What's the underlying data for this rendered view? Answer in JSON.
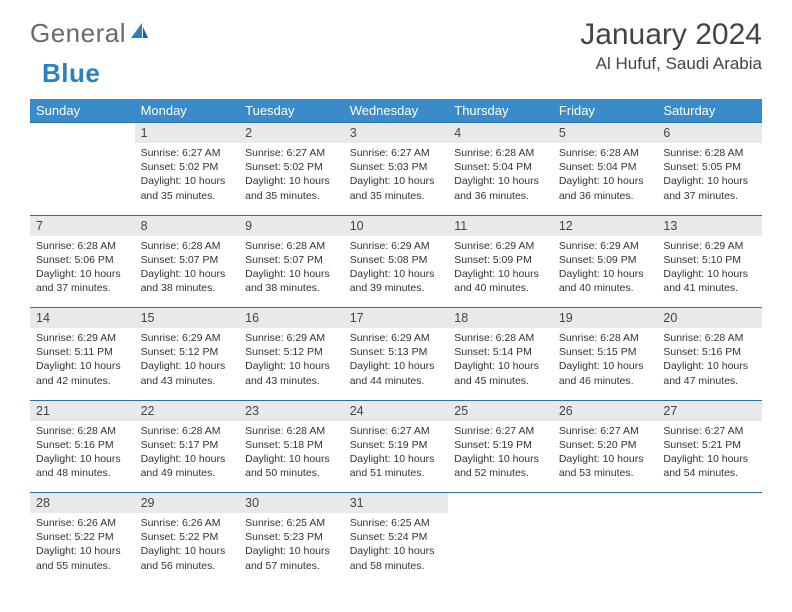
{
  "logo": {
    "part1": "General",
    "part2": "Blue"
  },
  "header": {
    "title": "January 2024",
    "location": "Al Hufuf, Saudi Arabia"
  },
  "colors": {
    "header_bg": "#3a8bc9",
    "daynum_bg": "#e9e9e9",
    "rule": "#2f6fa8",
    "logo_gray": "#6a6a6a",
    "logo_blue": "#2b7fc3"
  },
  "day_headers": [
    "Sunday",
    "Monday",
    "Tuesday",
    "Wednesday",
    "Thursday",
    "Friday",
    "Saturday"
  ],
  "weeks": [
    {
      "nums": [
        "",
        "1",
        "2",
        "3",
        "4",
        "5",
        "6"
      ],
      "cells": [
        null,
        {
          "sunrise": "6:27 AM",
          "sunset": "5:02 PM",
          "daylight": "10 hours and 35 minutes."
        },
        {
          "sunrise": "6:27 AM",
          "sunset": "5:02 PM",
          "daylight": "10 hours and 35 minutes."
        },
        {
          "sunrise": "6:27 AM",
          "sunset": "5:03 PM",
          "daylight": "10 hours and 35 minutes."
        },
        {
          "sunrise": "6:28 AM",
          "sunset": "5:04 PM",
          "daylight": "10 hours and 36 minutes."
        },
        {
          "sunrise": "6:28 AM",
          "sunset": "5:04 PM",
          "daylight": "10 hours and 36 minutes."
        },
        {
          "sunrise": "6:28 AM",
          "sunset": "5:05 PM",
          "daylight": "10 hours and 37 minutes."
        }
      ]
    },
    {
      "nums": [
        "7",
        "8",
        "9",
        "10",
        "11",
        "12",
        "13"
      ],
      "cells": [
        {
          "sunrise": "6:28 AM",
          "sunset": "5:06 PM",
          "daylight": "10 hours and 37 minutes."
        },
        {
          "sunrise": "6:28 AM",
          "sunset": "5:07 PM",
          "daylight": "10 hours and 38 minutes."
        },
        {
          "sunrise": "6:28 AM",
          "sunset": "5:07 PM",
          "daylight": "10 hours and 38 minutes."
        },
        {
          "sunrise": "6:29 AM",
          "sunset": "5:08 PM",
          "daylight": "10 hours and 39 minutes."
        },
        {
          "sunrise": "6:29 AM",
          "sunset": "5:09 PM",
          "daylight": "10 hours and 40 minutes."
        },
        {
          "sunrise": "6:29 AM",
          "sunset": "5:09 PM",
          "daylight": "10 hours and 40 minutes."
        },
        {
          "sunrise": "6:29 AM",
          "sunset": "5:10 PM",
          "daylight": "10 hours and 41 minutes."
        }
      ]
    },
    {
      "nums": [
        "14",
        "15",
        "16",
        "17",
        "18",
        "19",
        "20"
      ],
      "cells": [
        {
          "sunrise": "6:29 AM",
          "sunset": "5:11 PM",
          "daylight": "10 hours and 42 minutes."
        },
        {
          "sunrise": "6:29 AM",
          "sunset": "5:12 PM",
          "daylight": "10 hours and 43 minutes."
        },
        {
          "sunrise": "6:29 AM",
          "sunset": "5:12 PM",
          "daylight": "10 hours and 43 minutes."
        },
        {
          "sunrise": "6:29 AM",
          "sunset": "5:13 PM",
          "daylight": "10 hours and 44 minutes."
        },
        {
          "sunrise": "6:28 AM",
          "sunset": "5:14 PM",
          "daylight": "10 hours and 45 minutes."
        },
        {
          "sunrise": "6:28 AM",
          "sunset": "5:15 PM",
          "daylight": "10 hours and 46 minutes."
        },
        {
          "sunrise": "6:28 AM",
          "sunset": "5:16 PM",
          "daylight": "10 hours and 47 minutes."
        }
      ]
    },
    {
      "nums": [
        "21",
        "22",
        "23",
        "24",
        "25",
        "26",
        "27"
      ],
      "cells": [
        {
          "sunrise": "6:28 AM",
          "sunset": "5:16 PM",
          "daylight": "10 hours and 48 minutes."
        },
        {
          "sunrise": "6:28 AM",
          "sunset": "5:17 PM",
          "daylight": "10 hours and 49 minutes."
        },
        {
          "sunrise": "6:28 AM",
          "sunset": "5:18 PM",
          "daylight": "10 hours and 50 minutes."
        },
        {
          "sunrise": "6:27 AM",
          "sunset": "5:19 PM",
          "daylight": "10 hours and 51 minutes."
        },
        {
          "sunrise": "6:27 AM",
          "sunset": "5:19 PM",
          "daylight": "10 hours and 52 minutes."
        },
        {
          "sunrise": "6:27 AM",
          "sunset": "5:20 PM",
          "daylight": "10 hours and 53 minutes."
        },
        {
          "sunrise": "6:27 AM",
          "sunset": "5:21 PM",
          "daylight": "10 hours and 54 minutes."
        }
      ]
    },
    {
      "nums": [
        "28",
        "29",
        "30",
        "31",
        "",
        "",
        ""
      ],
      "cells": [
        {
          "sunrise": "6:26 AM",
          "sunset": "5:22 PM",
          "daylight": "10 hours and 55 minutes."
        },
        {
          "sunrise": "6:26 AM",
          "sunset": "5:22 PM",
          "daylight": "10 hours and 56 minutes."
        },
        {
          "sunrise": "6:25 AM",
          "sunset": "5:23 PM",
          "daylight": "10 hours and 57 minutes."
        },
        {
          "sunrise": "6:25 AM",
          "sunset": "5:24 PM",
          "daylight": "10 hours and 58 minutes."
        },
        null,
        null,
        null
      ]
    }
  ],
  "labels": {
    "sunrise": "Sunrise: ",
    "sunset": "Sunset: ",
    "daylight": "Daylight: "
  }
}
